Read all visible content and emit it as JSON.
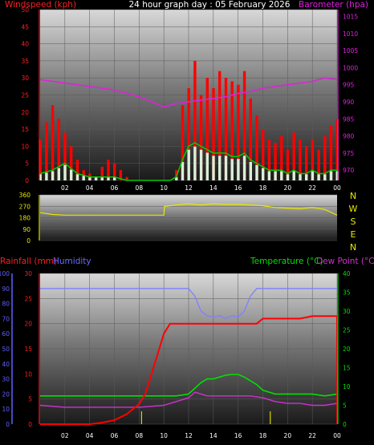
{
  "title": "24 hour graph day : 05 February 2026",
  "colors": {
    "wind": "#ff0000",
    "gust_fill": "#ffffff",
    "avg_wind": "#00cc00",
    "barometer": "#e020e0",
    "direction": "#e8e800",
    "rain": "#ff0000",
    "humidity": "#8080ff",
    "temperature": "#00e000",
    "dew_point": "#d030d0",
    "left_axis_wind": "#ff2020",
    "right_axis_baro": "#e020e0",
    "dir_axis": "#e8e800",
    "rain_axis": "#ff2020",
    "hum_axis": "#6060ff",
    "temp_axis": "#00e000"
  },
  "chart_data": [
    {
      "type": "bar",
      "panel": "wind",
      "labels": {
        "left": "Windspeed (kph)",
        "right": "Barometer (hpa)"
      },
      "x_ticks": [
        "02",
        "04",
        "06",
        "08",
        "10",
        "12",
        "14",
        "16",
        "18",
        "20",
        "22",
        "00"
      ],
      "y_left_ticks": [
        "0",
        "5",
        "10",
        "15",
        "20",
        "25",
        "30",
        "35",
        "40",
        "45",
        "50"
      ],
      "y_left_range": [
        0,
        50
      ],
      "y_right_ticks": [
        "970",
        "975",
        "980",
        "985",
        "990",
        "995",
        "1000",
        "1005",
        "1010",
        "1015"
      ],
      "y_right_range": [
        967,
        1017
      ],
      "x_range_hours": [
        0,
        24
      ],
      "wind_gust": {
        "hours": [
          0.0,
          0.5,
          1.0,
          1.5,
          2.0,
          2.5,
          3.0,
          3.5,
          4.0,
          4.5,
          5.0,
          5.5,
          6.0,
          6.5,
          7.0,
          7.5,
          8.0,
          8.5,
          9.0,
          9.5,
          10.0,
          10.5,
          11.0,
          11.5,
          12.0,
          12.5,
          13.0,
          13.5,
          14.0,
          14.5,
          15.0,
          15.5,
          16.0,
          16.5,
          17.0,
          17.5,
          18.0,
          18.5,
          19.0,
          19.5,
          20.0,
          20.5,
          21.0,
          21.5,
          22.0,
          22.5,
          23.0,
          23.5,
          24.0
        ],
        "values": [
          12,
          17,
          22,
          18,
          14,
          10,
          6,
          3,
          2,
          1,
          4,
          6,
          5,
          3,
          1,
          0,
          0,
          0,
          0,
          0,
          0,
          0,
          3,
          22,
          27,
          35,
          25,
          30,
          27,
          32,
          30,
          29,
          28,
          32,
          24,
          19,
          15,
          12,
          11,
          13,
          9,
          14,
          12,
          10,
          12,
          9,
          13,
          16,
          18
        ]
      },
      "wind_avg": {
        "hours": [
          0,
          1,
          2,
          3,
          4,
          5,
          6,
          7,
          8,
          9,
          10,
          10.5,
          11,
          11.5,
          12,
          12.5,
          13,
          13.5,
          14,
          14.5,
          15,
          15.5,
          16,
          16.5,
          17,
          17.5,
          18,
          18.5,
          19,
          19.5,
          20,
          20.5,
          21,
          21.5,
          22,
          22.5,
          23,
          23.5,
          24
        ],
        "values": [
          2,
          3,
          5,
          2,
          1,
          1,
          1,
          0,
          0,
          0,
          0,
          0,
          1,
          6,
          10,
          11,
          10,
          9,
          8,
          8,
          8,
          7,
          7,
          8,
          6,
          5,
          4,
          3,
          3,
          3,
          2,
          3,
          2,
          2,
          3,
          2,
          2,
          3,
          3
        ]
      },
      "barometer": {
        "hours": [
          0,
          2,
          4,
          6,
          8,
          9,
          10,
          11,
          12,
          13,
          14,
          15,
          16,
          17,
          18,
          19,
          20,
          21,
          22,
          23,
          24
        ],
        "values": [
          996.5,
          995.5,
          994.5,
          993.5,
          991.5,
          990,
          988.5,
          989.5,
          990,
          990.5,
          991,
          991.5,
          992.5,
          993,
          994,
          994.5,
          995,
          995.5,
          996,
          997,
          996.5
        ]
      }
    },
    {
      "type": "line",
      "panel": "direction",
      "y_ticks": [
        "0",
        "90",
        "180",
        "270",
        "360"
      ],
      "y_range": [
        0,
        360
      ],
      "compass": [
        "N",
        "W",
        "S",
        "E",
        "N"
      ],
      "series": [
        {
          "hours": [
            0,
            1,
            2,
            3,
            4,
            5,
            6,
            7,
            8,
            9,
            10,
            10.05,
            11,
            12,
            13,
            14,
            15,
            16,
            17,
            18,
            19,
            20,
            21,
            22,
            23,
            24
          ],
          "values": [
            220,
            205,
            200,
            200,
            200,
            200,
            200,
            200,
            200,
            200,
            200,
            270,
            280,
            290,
            280,
            290,
            285,
            285,
            280,
            275,
            260,
            255,
            250,
            260,
            245,
            200
          ]
        }
      ]
    },
    {
      "type": "line",
      "panel": "temperature",
      "labels": {
        "rain": "Rainfall (mm)",
        "humidity": "Humidity",
        "temp": "Temperature (°C)",
        "dew": "Dew Point (°C)"
      },
      "x_ticks": [
        "02",
        "04",
        "06",
        "08",
        "10",
        "12",
        "14",
        "16",
        "18",
        "20",
        "22",
        "00"
      ],
      "rain_ticks": [
        "0",
        "5",
        "10",
        "15",
        "20",
        "25",
        "30"
      ],
      "rain_range": [
        0,
        30
      ],
      "hum_ticks": [
        "0",
        "10",
        "20",
        "30",
        "40",
        "50",
        "60",
        "70",
        "80",
        "90",
        "100"
      ],
      "hum_range": [
        0,
        100
      ],
      "temp_ticks": [
        "0",
        "5",
        "10",
        "15",
        "20",
        "25",
        "30",
        "35",
        "40"
      ],
      "temp_range": [
        0,
        40
      ],
      "rainfall": {
        "hours": [
          0,
          2,
          4,
          5,
          6,
          7,
          8,
          8.5,
          9,
          9.5,
          10,
          10.5,
          11,
          12,
          13,
          14,
          15,
          16,
          17,
          17.5,
          18,
          19,
          20,
          21,
          22,
          23,
          24,
          24.01
        ],
        "values": [
          0,
          0,
          0,
          0.3,
          0.8,
          2,
          4,
          6,
          10,
          14,
          18,
          20,
          20,
          20,
          20,
          20,
          20,
          20,
          20,
          20,
          21,
          21,
          21,
          21,
          21.5,
          21.5,
          21.5,
          0
        ]
      },
      "humidity": {
        "hours": [
          0,
          2,
          4,
          6,
          8,
          10,
          11,
          12,
          12.5,
          13,
          13.5,
          14,
          14.5,
          15,
          15.5,
          16,
          16.5,
          17,
          17.5,
          18,
          19,
          20,
          22,
          24
        ],
        "values": [
          90,
          90,
          90,
          90,
          90,
          90,
          90,
          90,
          85,
          75,
          72,
          71,
          72,
          70,
          72,
          71,
          75,
          85,
          90,
          90,
          90,
          90,
          90,
          90
        ]
      },
      "temperature": {
        "hours": [
          0,
          2,
          4,
          6,
          8,
          10,
          11,
          12,
          12.5,
          13,
          13.5,
          14,
          14.5,
          15,
          15.5,
          16,
          16.5,
          17,
          17.5,
          18,
          19,
          20,
          21,
          22,
          23,
          24
        ],
        "values": [
          7.5,
          7.5,
          7.5,
          7.5,
          7.5,
          7.5,
          7.5,
          8,
          9.5,
          11,
          12,
          12,
          12.5,
          13,
          13.2,
          13.2,
          12.5,
          11.5,
          10.5,
          9,
          8,
          8,
          8,
          8,
          7.5,
          8
        ]
      },
      "dew_point": {
        "hours": [
          0,
          2,
          4,
          6,
          8,
          10,
          11,
          12,
          12.5,
          13,
          13.5,
          14,
          15,
          16,
          17,
          18,
          19,
          20,
          21,
          22,
          23,
          24
        ],
        "values": [
          5,
          4.5,
          4.5,
          4.5,
          4.5,
          5,
          6,
          7,
          8.5,
          8,
          7.5,
          7.5,
          7.5,
          7.5,
          7.5,
          7,
          6,
          5.5,
          5.5,
          5,
          5,
          5.5
        ]
      },
      "rain_rate_marks_hours": [
        8.2,
        18.6
      ]
    }
  ]
}
